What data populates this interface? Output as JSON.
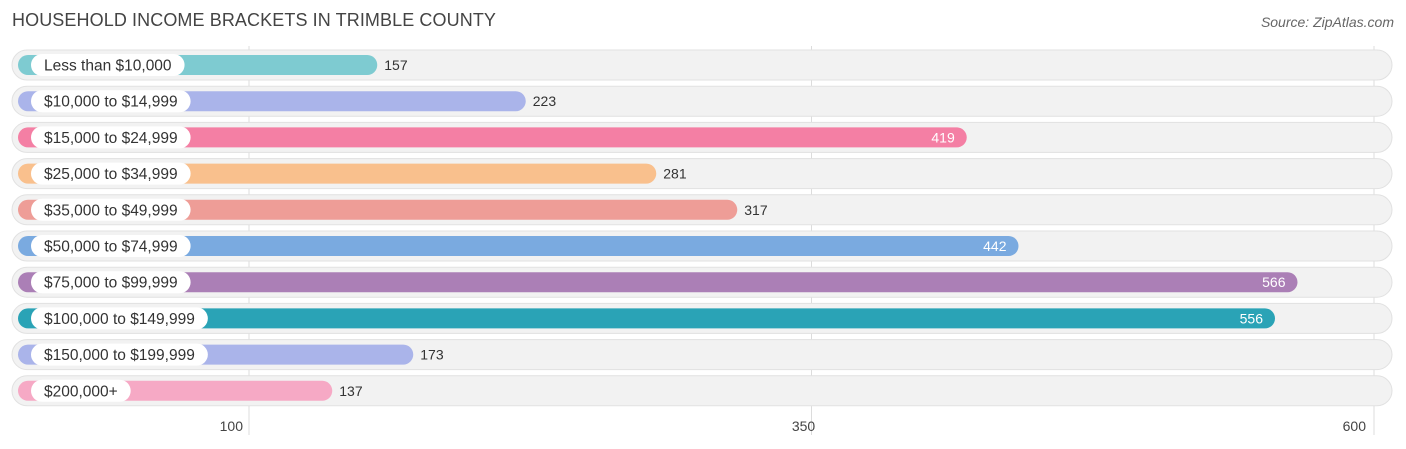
{
  "header": {
    "title": "HOUSEHOLD INCOME BRACKETS IN TRIMBLE COUNTY",
    "source": "Source: ZipAtlas.com"
  },
  "chart_data": {
    "type": "bar",
    "orientation": "horizontal",
    "categories": [
      "Less than $10,000",
      "$10,000 to $14,999",
      "$15,000 to $24,999",
      "$25,000 to $34,999",
      "$35,000 to $49,999",
      "$50,000 to $74,999",
      "$75,000 to $99,999",
      "$100,000 to $149,999",
      "$150,000 to $199,999",
      "$200,000+"
    ],
    "values": [
      157,
      223,
      419,
      281,
      317,
      442,
      566,
      556,
      173,
      137
    ],
    "colors": [
      "#7ecbd1",
      "#aab4ea",
      "#f47fa4",
      "#f9c08d",
      "#ee9d97",
      "#7aaae0",
      "#ab7fb6",
      "#2aa3b6",
      "#aab4ea",
      "#f6a9c5"
    ],
    "xticks": [
      100,
      350,
      600
    ],
    "xlim": [
      0,
      600
    ],
    "grid": true
  }
}
